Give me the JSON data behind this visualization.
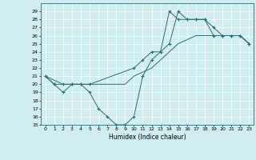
{
  "xlabel": "Humidex (Indice chaleur)",
  "xlim": [
    -0.5,
    23.5
  ],
  "ylim": [
    15,
    30
  ],
  "yticks": [
    15,
    16,
    17,
    18,
    19,
    20,
    21,
    22,
    23,
    24,
    25,
    26,
    27,
    28,
    29
  ],
  "xticks": [
    0,
    1,
    2,
    3,
    4,
    5,
    6,
    7,
    8,
    9,
    10,
    11,
    12,
    13,
    14,
    15,
    16,
    17,
    18,
    19,
    20,
    21,
    22,
    23
  ],
  "bg_color": "#d0eef0",
  "grid_color": "#ffffff",
  "line_color": "#2d6e6e",
  "series": [
    {
      "x": [
        0,
        1,
        2,
        3,
        4,
        5,
        6,
        7,
        8,
        9,
        10,
        11,
        12,
        13,
        14,
        15,
        16,
        17,
        18,
        19,
        20,
        21,
        22,
        23
      ],
      "y": [
        21,
        20,
        19,
        20,
        20,
        19,
        17,
        16,
        15,
        15,
        16,
        21,
        23,
        24,
        25,
        29,
        28,
        28,
        28,
        26,
        26,
        26,
        26,
        25
      ],
      "marker": "+"
    },
    {
      "x": [
        0,
        1,
        2,
        3,
        4,
        5,
        6,
        7,
        8,
        9,
        10,
        11,
        12,
        13,
        14,
        15,
        16,
        17,
        18,
        19,
        20,
        21,
        22,
        23
      ],
      "y": [
        21,
        20.5,
        20,
        20,
        20,
        20,
        20,
        20,
        20,
        20,
        21,
        21.5,
        22,
        23,
        24,
        25,
        25.5,
        26,
        26,
        26,
        26,
        26,
        26,
        25
      ],
      "marker": null
    },
    {
      "x": [
        0,
        1,
        2,
        3,
        4,
        5,
        10,
        11,
        12,
        13,
        14,
        15,
        16,
        17,
        18,
        19,
        20,
        21,
        22,
        23
      ],
      "y": [
        21,
        20,
        20,
        20,
        20,
        20,
        22,
        23,
        24,
        24,
        29,
        28,
        28,
        28,
        28,
        27,
        26,
        26,
        26,
        25
      ],
      "marker": "+"
    }
  ]
}
